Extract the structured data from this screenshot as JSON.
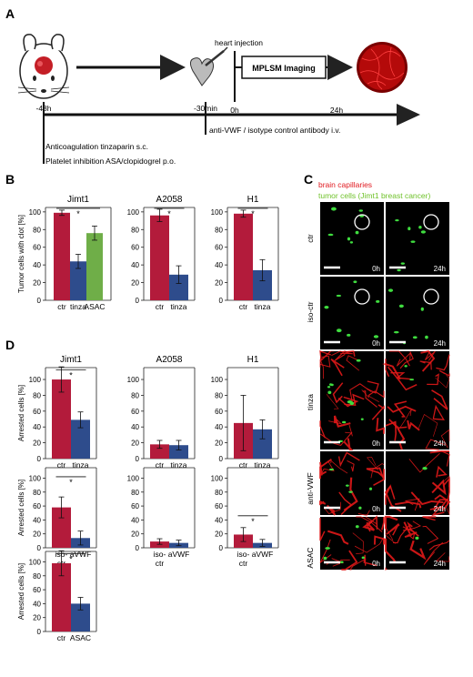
{
  "panels": {
    "A": "A",
    "B": "B",
    "C": "C",
    "D": "D"
  },
  "timeline": {
    "heart_injection": "heart injection",
    "imaging_label": "MPLSM Imaging",
    "t_minus48": "-48h",
    "t_minus30": "-30min",
    "t0": "0h",
    "t24": "24h",
    "antibody": "anti-VWF / isotype control antibody i.v.",
    "anticoag": "Anticoagulation tinzaparin s.c.",
    "platelet": "Platelet inhibition ASA/clopidogrel p.o."
  },
  "microscopy": {
    "legend_red": "brain capillaries",
    "legend_green": "tumor cells (Jimt1 breast cancer)",
    "legend_red_color": "#e0191f",
    "legend_green_color": "#6fc22a",
    "rows": [
      "ctr",
      "iso-ctr",
      "tinza",
      "anti-VWF",
      "ASAC"
    ],
    "time_left": "0h",
    "time_right": "24h"
  },
  "colors": {
    "red": "#b31b3b",
    "blue": "#2e4c8c",
    "green": "#6fae48"
  },
  "chart_data": [
    {
      "id": "B1",
      "type": "bar",
      "title": "Jimt1",
      "ylabel": "Tumor cells with clot [%]",
      "ylim": [
        0,
        105
      ],
      "yticks": [
        0,
        20,
        40,
        60,
        80,
        100
      ],
      "categories": [
        "ctr",
        "tinza",
        "ASAC"
      ],
      "values": [
        99,
        44,
        76
      ],
      "errors": [
        3,
        8,
        8
      ],
      "colors": [
        "red",
        "blue",
        "green"
      ],
      "significance": "*"
    },
    {
      "id": "B2",
      "type": "bar",
      "title": "A2058",
      "ylim": [
        0,
        105
      ],
      "yticks": [
        0,
        20,
        40,
        60,
        80,
        100
      ],
      "categories": [
        "ctr",
        "tinza"
      ],
      "values": [
        96,
        29
      ],
      "errors": [
        7,
        10
      ],
      "colors": [
        "red",
        "blue"
      ],
      "significance": "*"
    },
    {
      "id": "B3",
      "type": "bar",
      "title": "H1",
      "ylim": [
        0,
        105
      ],
      "yticks": [
        0,
        20,
        40,
        60,
        80,
        100
      ],
      "categories": [
        "ctr",
        "tinza"
      ],
      "values": [
        98,
        34
      ],
      "errors": [
        4,
        12
      ],
      "colors": [
        "red",
        "blue"
      ],
      "significance": "*"
    },
    {
      "id": "D1",
      "type": "bar",
      "title": "Jimt1",
      "ylabel": "Arrested cells [%]",
      "ylim": [
        0,
        115
      ],
      "yticks": [
        0,
        20,
        40,
        60,
        80,
        100
      ],
      "categories": [
        "ctr",
        "tinza"
      ],
      "values": [
        100,
        49
      ],
      "errors": [
        16,
        10
      ],
      "colors": [
        "red",
        "blue"
      ],
      "significance": "*"
    },
    {
      "id": "D2",
      "type": "bar",
      "title": "A2058",
      "ylim": [
        0,
        115
      ],
      "yticks": [
        0,
        20,
        40,
        60,
        80,
        100
      ],
      "categories": [
        "ctr",
        "tinza"
      ],
      "values": [
        18,
        17
      ],
      "errors": [
        5,
        6
      ],
      "colors": [
        "red",
        "blue"
      ],
      "significance": ""
    },
    {
      "id": "D3",
      "type": "bar",
      "title": "H1",
      "ylim": [
        0,
        115
      ],
      "yticks": [
        0,
        20,
        40,
        60,
        80,
        100
      ],
      "categories": [
        "ctr",
        "tinza"
      ],
      "values": [
        45,
        37
      ],
      "errors": [
        35,
        12
      ],
      "colors": [
        "red",
        "blue"
      ],
      "significance": ""
    },
    {
      "id": "D4",
      "type": "bar",
      "ylabel": "Arrested cells [%]",
      "ylim": [
        0,
        115
      ],
      "yticks": [
        0,
        20,
        40,
        60,
        80,
        100
      ],
      "categories": [
        "iso-\nctr",
        "aVWF"
      ],
      "values": [
        58,
        14
      ],
      "errors": [
        15,
        10
      ],
      "colors": [
        "red",
        "blue"
      ],
      "significance": "*"
    },
    {
      "id": "D5",
      "type": "bar",
      "ylim": [
        0,
        115
      ],
      "yticks": [
        0,
        20,
        40,
        60,
        80,
        100
      ],
      "categories": [
        "iso-\nctr",
        "aVWF"
      ],
      "values": [
        9,
        7
      ],
      "errors": [
        4,
        4
      ],
      "colors": [
        "red",
        "blue"
      ],
      "significance": ""
    },
    {
      "id": "D6",
      "type": "bar",
      "ylim": [
        0,
        115
      ],
      "yticks": [
        0,
        20,
        40,
        60,
        80,
        100
      ],
      "categories": [
        "iso-\nctr",
        "aVWF"
      ],
      "values": [
        19,
        7
      ],
      "errors": [
        10,
        5
      ],
      "colors": [
        "red",
        "blue"
      ],
      "significance": "*"
    },
    {
      "id": "D7",
      "type": "bar",
      "ylabel": "Arrested cells [%]",
      "ylim": [
        0,
        115
      ],
      "yticks": [
        0,
        20,
        40,
        60,
        80,
        100
      ],
      "categories": [
        "ctr",
        "ASAC"
      ],
      "values": [
        98,
        40
      ],
      "errors": [
        18,
        9
      ],
      "colors": [
        "red",
        "blue"
      ],
      "significance": "*"
    }
  ]
}
